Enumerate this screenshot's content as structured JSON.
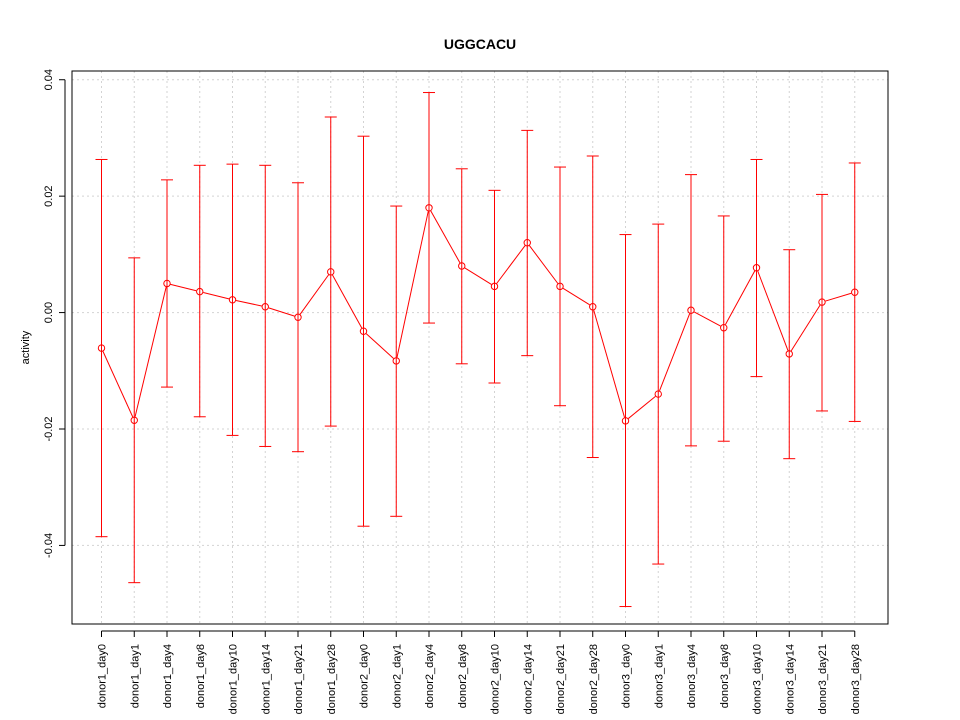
{
  "chart_data": {
    "type": "line",
    "title": "UGGCACU",
    "xlabel": "",
    "ylabel": "activity",
    "ylim": [
      -0.0535,
      0.0415
    ],
    "yticks": [
      -0.04,
      -0.02,
      0.0,
      0.02,
      0.04
    ],
    "ytick_labels": [
      "-0.04",
      "-0.02",
      "0.00",
      "0.02",
      "0.04"
    ],
    "grid": true,
    "color": "#ff0000",
    "categories": [
      "donor1_day0",
      "donor1_day1",
      "donor1_day4",
      "donor1_day8",
      "donor1_day10",
      "donor1_day14",
      "donor1_day21",
      "donor1_day28",
      "donor2_day0",
      "donor2_day1",
      "donor2_day4",
      "donor2_day8",
      "donor2_day10",
      "donor2_day14",
      "donor2_day21",
      "donor2_day28",
      "donor3_day0",
      "donor3_day1",
      "donor3_day4",
      "donor3_day8",
      "donor3_day10",
      "donor3_day14",
      "donor3_day21",
      "donor3_day28"
    ],
    "values": [
      -0.0061,
      -0.0185,
      0.005,
      0.0036,
      0.0022,
      0.001,
      -0.0008,
      0.007,
      -0.0032,
      -0.0083,
      0.018,
      0.008,
      0.0045,
      0.012,
      0.0045,
      0.001,
      -0.0186,
      -0.014,
      0.0004,
      -0.0026,
      0.0077,
      -0.0071,
      0.0018,
      0.0035
    ],
    "upper": [
      0.0263,
      0.0094,
      0.0228,
      0.0253,
      0.0255,
      0.0253,
      0.0223,
      0.0336,
      0.0303,
      0.0183,
      0.0378,
      0.0247,
      0.021,
      0.0313,
      0.025,
      0.0269,
      0.0134,
      0.0152,
      0.0237,
      0.0166,
      0.0263,
      0.0108,
      0.0203,
      0.0257
    ],
    "lower": [
      -0.0385,
      -0.0464,
      -0.0128,
      -0.0179,
      -0.0211,
      -0.023,
      -0.0239,
      -0.0195,
      -0.0367,
      -0.035,
      -0.0018,
      -0.0088,
      -0.0121,
      -0.0074,
      -0.016,
      -0.0249,
      -0.0505,
      -0.0432,
      -0.0229,
      -0.0221,
      -0.011,
      -0.0251,
      -0.0169,
      -0.0187
    ]
  }
}
